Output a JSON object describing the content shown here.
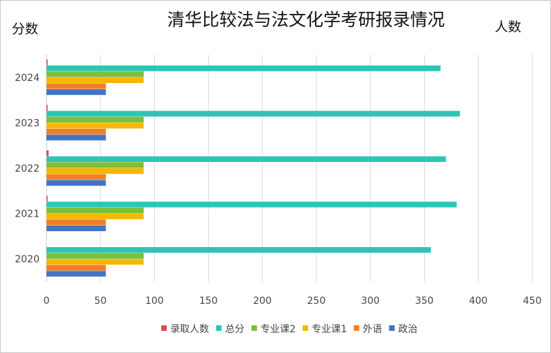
{
  "chart_data": {
    "type": "bar",
    "orientation": "horizontal",
    "title": "清华比较法与法文化学考研报录情况",
    "ylabel": "分数",
    "xlabel": "人数",
    "categories": [
      "2020",
      "2021",
      "2022",
      "2023",
      "2024"
    ],
    "xlim": [
      0,
      450
    ],
    "xticks": [
      0,
      50,
      100,
      150,
      200,
      250,
      300,
      350,
      400,
      450
    ],
    "grid": true,
    "legend_position": "bottom",
    "series": [
      {
        "name": "录取人数",
        "color": "#e3445c",
        "values": [
          0,
          1,
          2,
          1,
          1
        ]
      },
      {
        "name": "总分",
        "color": "#2ec4b6",
        "values": [
          356,
          380,
          370,
          383,
          365
        ]
      },
      {
        "name": "专业课2",
        "color": "#7cbf3b",
        "values": [
          90,
          90,
          90,
          90,
          90
        ]
      },
      {
        "name": "专业课1",
        "color": "#f5b800",
        "values": [
          90,
          90,
          90,
          90,
          90
        ]
      },
      {
        "name": "外语",
        "color": "#f07f2a",
        "values": [
          55,
          55,
          55,
          55,
          55
        ]
      },
      {
        "name": "政治",
        "color": "#4472c4",
        "values": [
          55,
          55,
          55,
          55,
          55
        ]
      }
    ]
  }
}
